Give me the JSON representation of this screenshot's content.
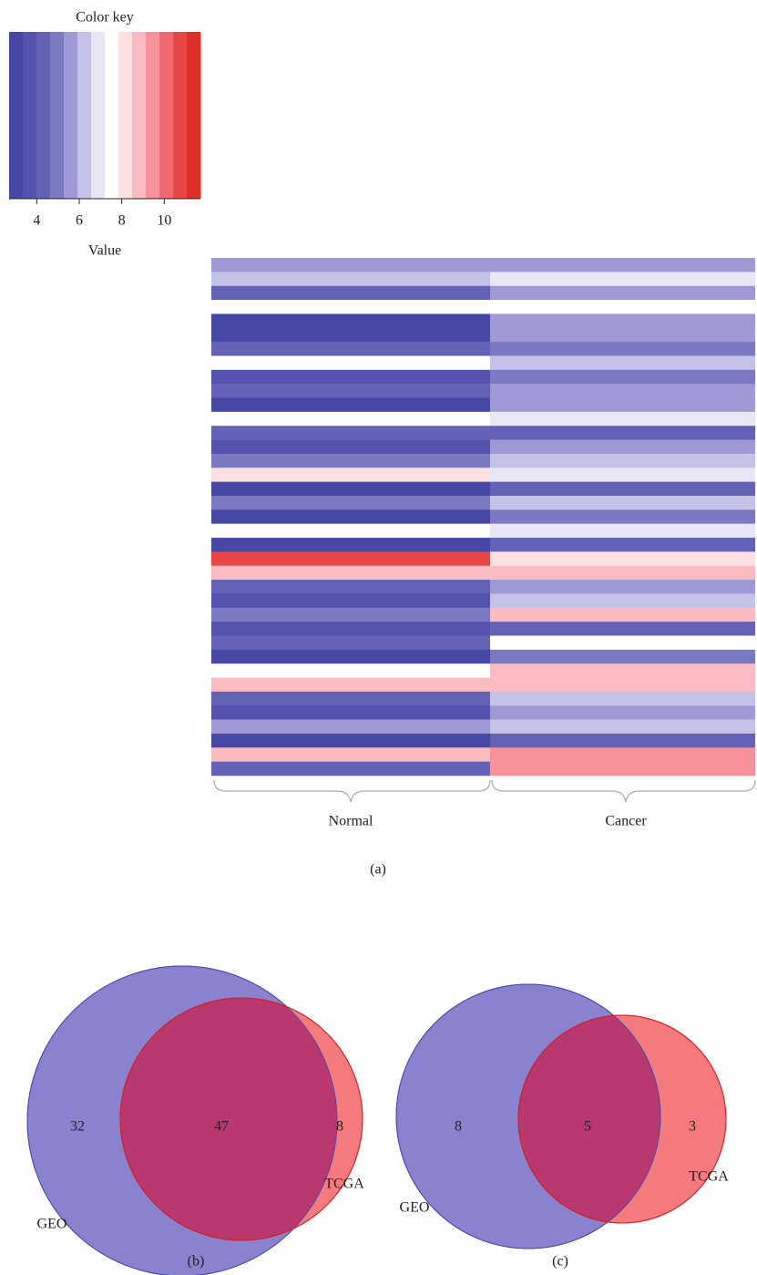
{
  "chart_data": [
    {
      "type": "heatmap",
      "title": "Color key",
      "xlabel": "Value",
      "xlim": [
        2.7,
        11.7
      ],
      "xticks": [
        4,
        6,
        8,
        10
      ],
      "colors": [
        "#4747a5",
        "#5453ad",
        "#6462b7",
        "#7c79c3",
        "#9f9ad6",
        "#c5c2e8",
        "#e9e7f6",
        "#ffffff",
        "#fde0e2",
        "#fbbcc1",
        "#f7929a",
        "#f06870",
        "#e84747",
        "#e02e26"
      ],
      "categories": [
        "Normal",
        "Cancer"
      ],
      "values": [
        [
          5.5,
          5.8
        ],
        [
          6.5,
          6.8
        ],
        [
          4.5,
          5.5
        ],
        [
          7.5,
          7.2
        ],
        [
          3.3,
          5.8
        ],
        [
          3.2,
          5.6
        ],
        [
          4,
          5
        ],
        [
          7.5,
          6.5
        ],
        [
          3.5,
          5
        ],
        [
          4.5,
          5.5
        ],
        [
          3.3,
          5.5
        ],
        [
          7.5,
          7
        ],
        [
          4,
          4.6
        ],
        [
          3.4,
          5.8
        ],
        [
          5,
          6.5
        ],
        [
          8.2,
          7
        ],
        [
          3.3,
          4.5
        ],
        [
          4.8,
          6
        ],
        [
          3.3,
          5
        ],
        [
          7.5,
          6.8
        ],
        [
          3.2,
          4
        ],
        [
          10.5,
          8
        ],
        [
          8.5,
          9
        ],
        [
          4,
          5.8
        ],
        [
          3.8,
          6.5
        ],
        [
          5,
          8.5
        ],
        [
          3.4,
          4.5
        ],
        [
          4.2,
          7.5
        ],
        [
          3.3,
          5
        ],
        [
          7.5,
          9
        ],
        [
          8.7,
          8.5
        ],
        [
          4.6,
          6
        ],
        [
          3.5,
          5.5
        ],
        [
          5.5,
          6.3
        ],
        [
          3.2,
          4.2
        ],
        [
          8.5,
          9.5
        ],
        [
          4.5,
          9.2
        ]
      ],
      "caption": "(a)"
    },
    {
      "type": "venn",
      "sets": [
        "GEO",
        "TCGA"
      ],
      "values": [
        32,
        47,
        8
      ],
      "colors": [
        "#8a82cf",
        "#f47a7e",
        "#b8386f"
      ],
      "caption": "(b)"
    },
    {
      "type": "venn",
      "sets": [
        "GEO",
        "TCGA"
      ],
      "values": [
        8,
        5,
        3
      ],
      "colors": [
        "#8a82cf",
        "#f47a7e",
        "#b8386f"
      ],
      "caption": "(c)"
    }
  ]
}
